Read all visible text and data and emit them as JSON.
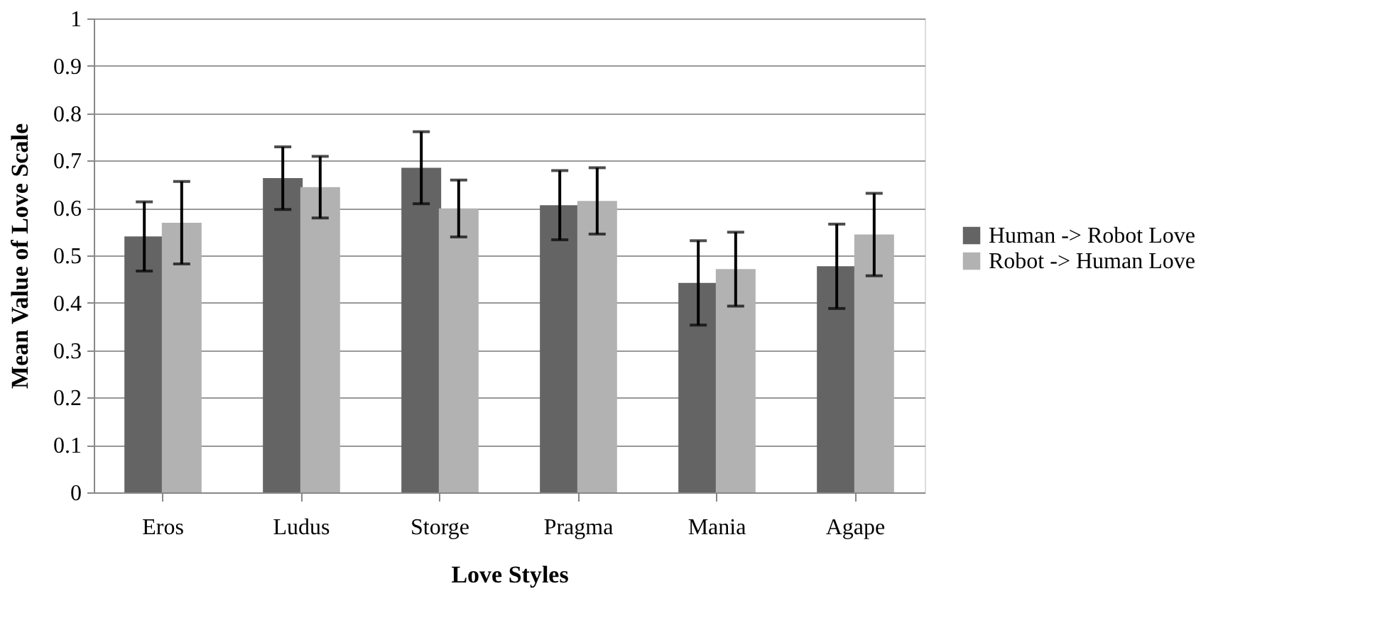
{
  "chart_data": {
    "type": "bar",
    "xlabel": "Love Styles",
    "ylabel": "Mean Value of Love Scale",
    "categories": [
      "Eros",
      "Ludus",
      "Storge",
      "Pragma",
      "Mania",
      "Agape"
    ],
    "series": [
      {
        "name": "Human -> Robot Love",
        "color": "#646464",
        "values": [
          0.54,
          0.663,
          0.685,
          0.606,
          0.442,
          0.477
        ],
        "errors": [
          0.073,
          0.066,
          0.076,
          0.073,
          0.089,
          0.089
        ]
      },
      {
        "name": "Robot -> Human Love",
        "color": "#b2b2b2",
        "values": [
          0.569,
          0.644,
          0.599,
          0.615,
          0.471,
          0.544
        ],
        "errors": [
          0.087,
          0.065,
          0.06,
          0.07,
          0.078,
          0.087
        ]
      }
    ],
    "ylim": [
      0,
      1
    ],
    "yticks": [
      0,
      0.1,
      0.2,
      0.3,
      0.4,
      0.5,
      0.6,
      0.7,
      0.8,
      0.9,
      1
    ],
    "grid": "y",
    "legend": "right"
  }
}
